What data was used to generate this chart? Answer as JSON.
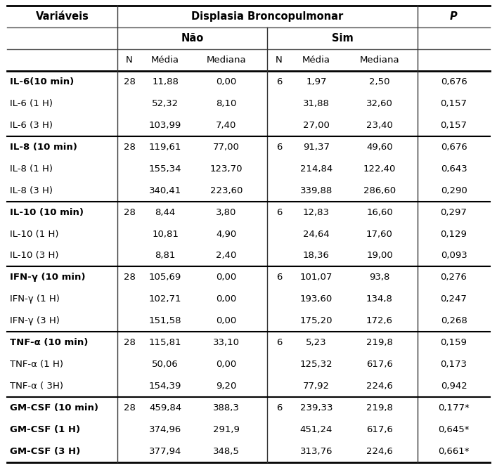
{
  "title": "Displasia Broncopulmonar",
  "col_variáveis": "Variáveis",
  "col_p": "P",
  "sub_nao": "Não",
  "sub_sim": "Sim",
  "sub_cols": [
    "N",
    "Média",
    "Mediana"
  ],
  "rows": [
    {
      "var": "IL-6(10 min)",
      "n_nao": "28",
      "media_nao": "11,88",
      "mediana_nao": "0,00",
      "n_sim": "6",
      "media_sim": "1,97",
      "mediana_sim": "2,50",
      "p": "0,676",
      "bold": true,
      "group_start": true
    },
    {
      "var": "IL-6 (1 H)",
      "n_nao": "",
      "media_nao": "52,32",
      "mediana_nao": "8,10",
      "n_sim": "",
      "media_sim": "31,88",
      "mediana_sim": "32,60",
      "p": "0,157",
      "bold": false,
      "group_start": false
    },
    {
      "var": "IL-6 (3 H)",
      "n_nao": "",
      "media_nao": "103,99",
      "mediana_nao": "7,40",
      "n_sim": "",
      "media_sim": "27,00",
      "mediana_sim": "23,40",
      "p": "0,157",
      "bold": false,
      "group_start": false
    },
    {
      "var": "IL-8 (10 min)",
      "n_nao": "28",
      "media_nao": "119,61",
      "mediana_nao": "77,00",
      "n_sim": "6",
      "media_sim": "91,37",
      "mediana_sim": "49,60",
      "p": "0,676",
      "bold": true,
      "group_start": true
    },
    {
      "var": "IL-8 (1 H)",
      "n_nao": "",
      "media_nao": "155,34",
      "mediana_nao": "123,70",
      "n_sim": "",
      "media_sim": "214,84",
      "mediana_sim": "122,40",
      "p": "0,643",
      "bold": false,
      "group_start": false
    },
    {
      "var": "IL-8 (3 H)",
      "n_nao": "",
      "media_nao": "340,41",
      "mediana_nao": "223,60",
      "n_sim": "",
      "media_sim": "339,88",
      "mediana_sim": "286,60",
      "p": "0,290",
      "bold": false,
      "group_start": false
    },
    {
      "var": "IL-10 (10 min)",
      "n_nao": "28",
      "media_nao": "8,44",
      "mediana_nao": "3,80",
      "n_sim": "6",
      "media_sim": "12,83",
      "mediana_sim": "16,60",
      "p": "0,297",
      "bold": true,
      "group_start": true
    },
    {
      "var": "IL-10 (1 H)",
      "n_nao": "",
      "media_nao": "10,81",
      "mediana_nao": "4,90",
      "n_sim": "",
      "media_sim": "24,64",
      "mediana_sim": "17,60",
      "p": "0,129",
      "bold": false,
      "group_start": false
    },
    {
      "var": "IL-10 (3 H)",
      "n_nao": "",
      "media_nao": "8,81",
      "mediana_nao": "2,40",
      "n_sim": "",
      "media_sim": "18,36",
      "mediana_sim": "19,00",
      "p": "0,093",
      "bold": false,
      "group_start": false
    },
    {
      "var": "IFN-γ (10 min)",
      "n_nao": "28",
      "media_nao": "105,69",
      "mediana_nao": "0,00",
      "n_sim": "6",
      "media_sim": "101,07",
      "mediana_sim": "93,8",
      "p": "0,276",
      "bold": true,
      "group_start": true
    },
    {
      "var": "IFN-γ (1 H)",
      "n_nao": "",
      "media_nao": "102,71",
      "mediana_nao": "0,00",
      "n_sim": "",
      "media_sim": "193,60",
      "mediana_sim": "134,8",
      "p": "0,247",
      "bold": false,
      "group_start": false
    },
    {
      "var": "IFN-γ (3 H)",
      "n_nao": "",
      "media_nao": "151,58",
      "mediana_nao": "0,00",
      "n_sim": "",
      "media_sim": "175,20",
      "mediana_sim": "172,6",
      "p": "0,268",
      "bold": false,
      "group_start": false
    },
    {
      "var": "TNF-α (10 min)",
      "n_nao": "28",
      "media_nao": "115,81",
      "mediana_nao": "33,10",
      "n_sim": "6",
      "media_sim": "5,23",
      "mediana_sim": "219,8",
      "p": "0,159",
      "bold": true,
      "group_start": true
    },
    {
      "var": "TNF-α (1 H)",
      "n_nao": "",
      "media_nao": "50,06",
      "mediana_nao": "0,00",
      "n_sim": "",
      "media_sim": "125,32",
      "mediana_sim": "617,6",
      "p": "0,173",
      "bold": false,
      "group_start": false
    },
    {
      "var": "TNF-α ( 3H)",
      "n_nao": "",
      "media_nao": "154,39",
      "mediana_nao": "9,20",
      "n_sim": "",
      "media_sim": "77,92",
      "mediana_sim": "224,6",
      "p": "0,942",
      "bold": false,
      "group_start": false
    },
    {
      "var": "GM-CSF (10 min)",
      "n_nao": "28",
      "media_nao": "459,84",
      "mediana_nao": "388,3",
      "n_sim": "6",
      "media_sim": "239,33",
      "mediana_sim": "219,8",
      "p": "0,177*",
      "bold": true,
      "group_start": true
    },
    {
      "var": "GM-CSF (1 H)",
      "n_nao": "",
      "media_nao": "374,96",
      "mediana_nao": "291,9",
      "n_sim": "",
      "media_sim": "451,24",
      "mediana_sim": "617,6",
      "p": "0,645*",
      "bold": true,
      "group_start": false
    },
    {
      "var": "GM-CSF (3 H)",
      "n_nao": "",
      "media_nao": "377,94",
      "mediana_nao": "348,5",
      "n_sim": "",
      "media_sim": "313,76",
      "mediana_sim": "224,6",
      "p": "0,661*",
      "bold": true,
      "group_start": false
    }
  ],
  "bg_color": "#ffffff",
  "font_size": 9.5,
  "header_font_size": 10.5
}
